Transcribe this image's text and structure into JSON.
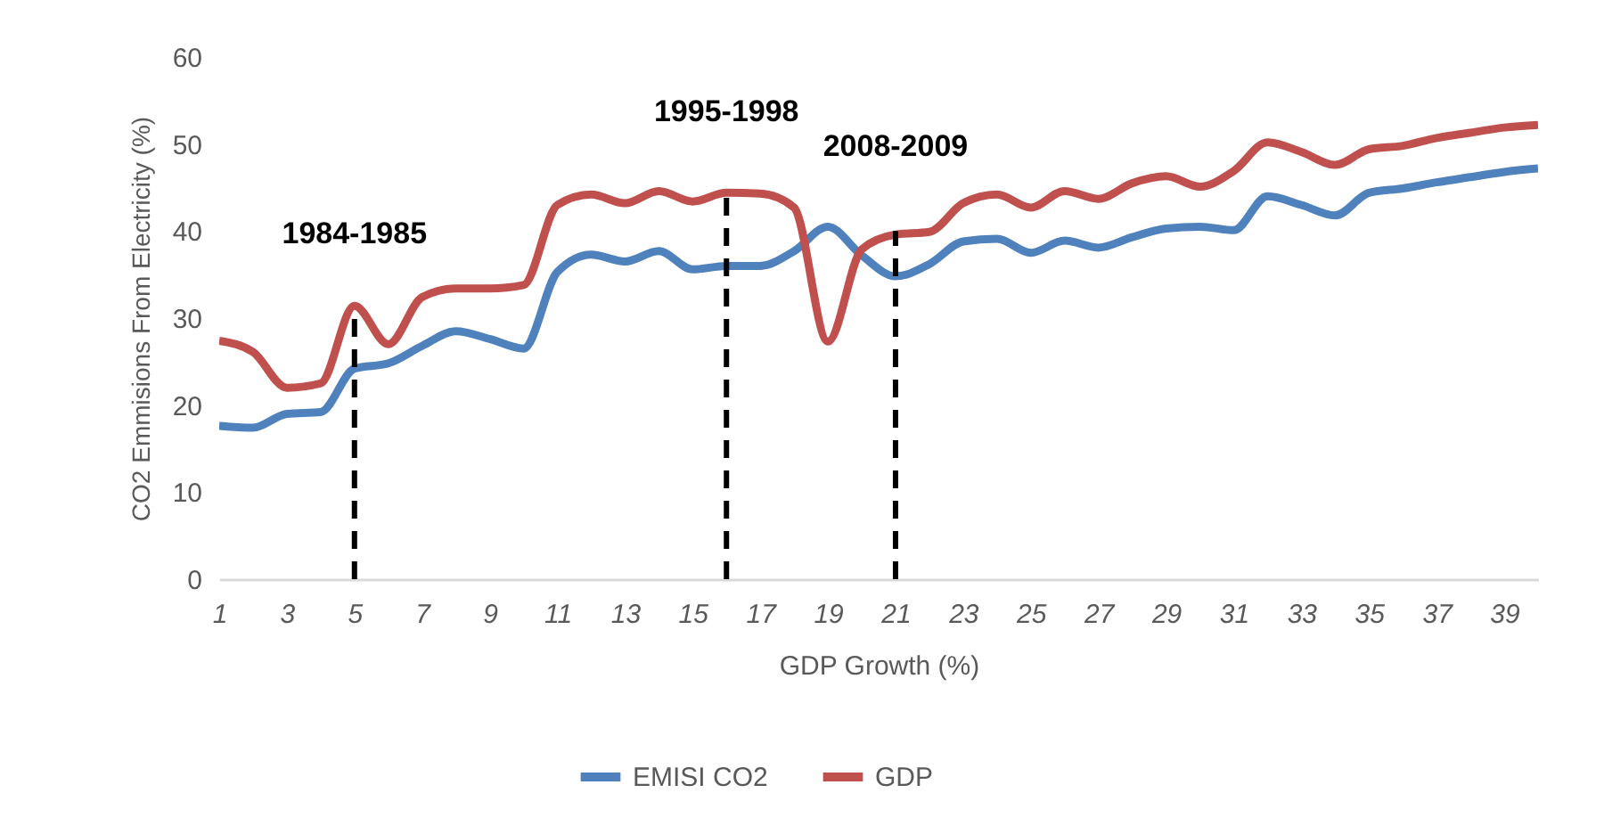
{
  "chart_data": {
    "type": "line",
    "xlabel": "GDP Growth (%)",
    "ylabel": "CO2 Emmisions From Electricity (%)",
    "x": [
      1,
      2,
      3,
      4,
      5,
      6,
      7,
      8,
      9,
      10,
      11,
      12,
      13,
      14,
      15,
      16,
      17,
      18,
      19,
      20,
      21,
      22,
      23,
      24,
      25,
      26,
      27,
      28,
      29,
      30,
      31,
      32,
      33,
      34,
      35,
      36,
      37,
      38,
      39,
      40
    ],
    "xlim": [
      1,
      40
    ],
    "xticks": [
      1,
      3,
      5,
      7,
      9,
      11,
      13,
      15,
      17,
      19,
      21,
      23,
      25,
      27,
      29,
      31,
      33,
      35,
      37,
      39
    ],
    "ylim": [
      0,
      60
    ],
    "yticks": [
      0,
      10,
      20,
      30,
      40,
      50,
      60
    ],
    "grid": false,
    "legend": "bottom",
    "marker": "none",
    "line_style": "solid",
    "series": [
      {
        "name": "EMISI CO2",
        "color": "#4f81bd",
        "values": [
          17.6,
          17.4,
          19.0,
          19.2,
          24.2,
          24.8,
          26.8,
          28.5,
          27.6,
          26.5,
          35.3,
          37.3,
          36.5,
          37.7,
          35.6,
          36.0,
          36.0,
          37.7,
          40.5,
          37.2,
          34.8,
          36.2,
          38.8,
          39.1,
          37.5,
          38.9,
          38.1,
          39.3,
          40.3,
          40.5,
          40.1,
          44.0,
          43.0,
          41.8,
          44.4,
          44.9,
          45.6,
          46.2,
          46.8,
          47.2
        ]
      },
      {
        "name": "GDP",
        "color": "#c0504d",
        "values": [
          27.4,
          26.1,
          22.0,
          22.5,
          31.4,
          27.0,
          32.4,
          33.4,
          33.4,
          33.8,
          43.0,
          44.2,
          43.2,
          44.6,
          43.4,
          44.4,
          44.3,
          42.7,
          27.3,
          37.9,
          39.6,
          39.9,
          43.2,
          44.2,
          42.7,
          44.6,
          43.7,
          45.5,
          46.3,
          45.1,
          46.9,
          50.2,
          49.1,
          47.6,
          49.4,
          49.8,
          50.7,
          51.3,
          51.9,
          52.2
        ]
      },
      {
        "type": "line",
        "color": "#000000",
        "line_style": "dashed",
        "x": [
          5,
          5
        ],
        "values": [
          0,
          30
        ]
      },
      {
        "type": "line",
        "color": "#000000",
        "line_style": "dashed",
        "x": [
          16,
          16
        ],
        "values": [
          0,
          44
        ]
      },
      {
        "type": "line",
        "color": "#000000",
        "line_style": "dashed",
        "x": [
          21,
          21
        ],
        "values": [
          0,
          40
        ]
      }
    ],
    "annotations": [
      {
        "text": "1984-1985",
        "x": 5,
        "y": 30
      },
      {
        "text": "1995-1998",
        "x": 16,
        "y": 44
      },
      {
        "text": "2008-2009",
        "x": 21,
        "y": 40
      }
    ]
  }
}
